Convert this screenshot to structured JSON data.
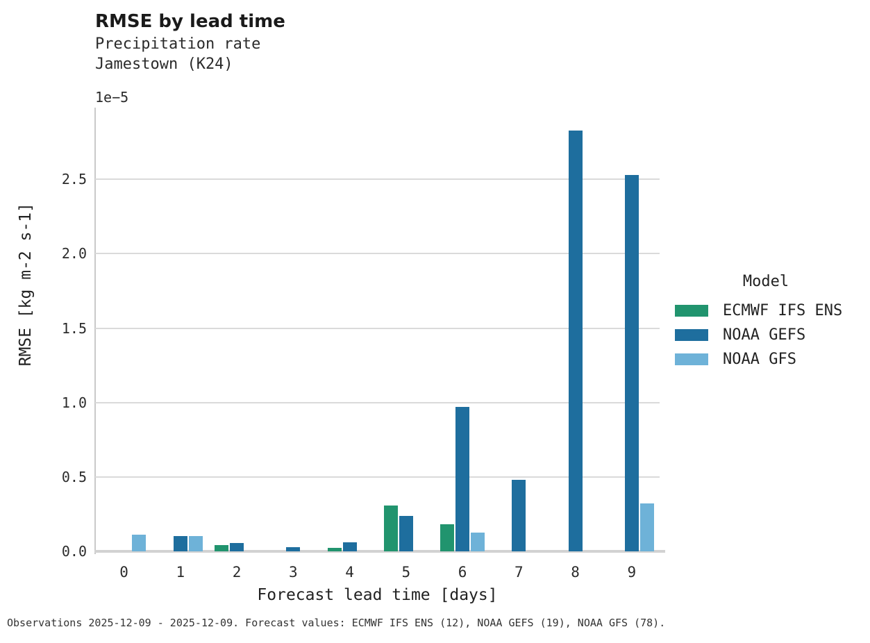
{
  "chart_data": {
    "type": "bar",
    "title": "RMSE by lead time",
    "subtitle1": "Precipitation rate",
    "subtitle2": "Jamestown (K24)",
    "y_offset_label": "1e−5",
    "xlabel": "Forecast lead time [days]",
    "ylabel": "RMSE [kg m-2 s-1]",
    "value_scale": "1e-5",
    "grid": "horizontal",
    "categories": [
      0,
      1,
      2,
      3,
      4,
      5,
      6,
      7,
      8,
      9
    ],
    "x_tick_labels": [
      "0",
      "1",
      "2",
      "3",
      "4",
      "5",
      "6",
      "7",
      "8",
      "9"
    ],
    "y_ticks": [
      0.0,
      0.5,
      1.0,
      1.5,
      2.0,
      2.5
    ],
    "y_tick_labels": [
      "0.0",
      "0.5",
      "1.0",
      "1.5",
      "2.0",
      "2.5"
    ],
    "ylim": [
      0,
      2.97
    ],
    "legend": {
      "title": "Model",
      "position": "right"
    },
    "series": [
      {
        "name": "ECMWF IFS ENS",
        "color": "#21946e",
        "values": [
          null,
          null,
          0.04,
          null,
          0.025,
          0.31,
          0.18,
          null,
          null,
          null
        ]
      },
      {
        "name": "NOAA GEFS",
        "color": "#1e6e9e",
        "values": [
          null,
          0.105,
          0.055,
          0.03,
          0.06,
          0.24,
          0.97,
          0.48,
          2.83,
          2.53
        ]
      },
      {
        "name": "NOAA GFS",
        "color": "#6eb2d8",
        "values": [
          0.11,
          0.105,
          null,
          null,
          null,
          null,
          0.125,
          null,
          null,
          0.32
        ]
      }
    ]
  },
  "footer": {
    "text": "Observations 2025-12-09 - 2025-12-09. Forecast values: ECMWF IFS ENS (12), NOAA GEFS (19), NOAA GFS (78)."
  }
}
